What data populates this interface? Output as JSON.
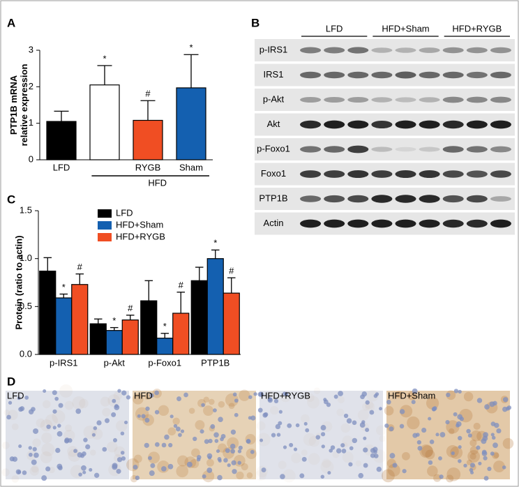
{
  "chart_data": [
    {
      "type": "bar",
      "panel": "A",
      "y_label": [
        "PTP1B mRNA",
        "relative expression"
      ],
      "categories": [
        "LFD",
        null,
        "RYGB",
        "Sham"
      ],
      "values": [
        1.05,
        2.05,
        1.08,
        1.97
      ],
      "errors": [
        0.28,
        0.53,
        0.54,
        0.91
      ],
      "colors": [
        "#000000",
        "#ffffff",
        "#f04e23",
        "#1460b0"
      ],
      "annotations": [
        null,
        "*",
        "#",
        "*"
      ],
      "group_label": "HFD",
      "ylim": [
        0,
        3
      ],
      "yticks": [
        0,
        1,
        2,
        3
      ]
    },
    {
      "type": "bar",
      "panel": "C",
      "y_label": [
        "Protein (ratio to actin)"
      ],
      "categories": [
        "p-IRS1",
        "p-Akt",
        "p-Foxo1",
        "PTP1B"
      ],
      "legend": "top",
      "series": [
        {
          "name": "LFD",
          "color": "#000000",
          "values": [
            0.87,
            0.32,
            0.56,
            0.77
          ],
          "errors": [
            0.14,
            0.05,
            0.21,
            0.14
          ],
          "annotations": [
            null,
            null,
            null,
            null
          ]
        },
        {
          "name": "HFD+Sham",
          "color": "#1460b0",
          "values": [
            0.59,
            0.25,
            0.17,
            1.0
          ],
          "errors": [
            0.04,
            0.03,
            0.05,
            0.09
          ],
          "annotations": [
            "*",
            "*",
            "*",
            "*"
          ]
        },
        {
          "name": "HFD+RYGB",
          "color": "#f04e23",
          "values": [
            0.73,
            0.36,
            0.43,
            0.64
          ],
          "errors": [
            0.11,
            0.05,
            0.22,
            0.16
          ],
          "annotations": [
            "#",
            "#",
            "#",
            "#"
          ]
        }
      ],
      "ylim": [
        0,
        1.5
      ],
      "yticks": [
        {
          "value": 0,
          "label": "0.0"
        },
        0.5,
        {
          "value": 1,
          "label": "1.0"
        },
        1.5
      ]
    }
  ],
  "blot": {
    "panel": "B",
    "groups": [
      "LFD",
      "HFD+Sham",
      "HFD+RYGB"
    ],
    "rows": [
      "p-IRS1",
      "IRS1",
      "p-Akt",
      "Akt",
      "p-Foxo1",
      "Foxo1",
      "PTP1B",
      "Actin"
    ]
  },
  "histology": {
    "panel": "D",
    "labels": [
      "LFD",
      "HFD",
      "HFD+RYGB",
      "HFD+Sham"
    ]
  }
}
